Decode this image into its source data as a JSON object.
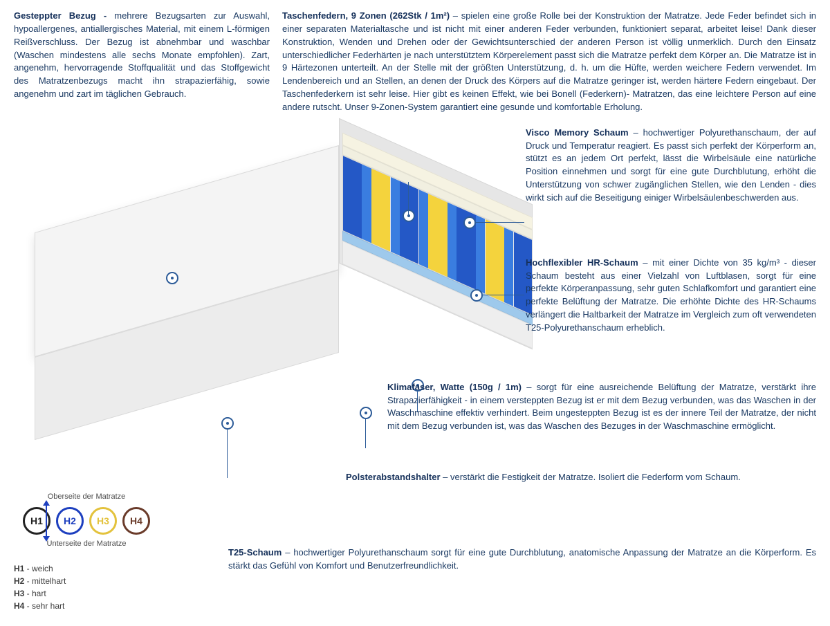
{
  "colors": {
    "text": "#1a3962",
    "title": "#15305a",
    "line": "#2c5b98",
    "h1": "#222222",
    "h2": "#1d3fbf",
    "h3": "#e3c23c",
    "h4": "#6a3b2a",
    "spring_blue": "#2458c6",
    "spring_lblue": "#3a7de0",
    "spring_yellow": "#f4d33d",
    "visco": "#f6f3e2",
    "hr": "#f1efe0",
    "klima": "#9ec9ec",
    "t25": "#eeeeee",
    "cover": "#f4f4f4"
  },
  "spring_pattern": [
    "b",
    "b",
    "lb",
    "y",
    "y",
    "lb",
    "b",
    "b",
    "lb",
    "y",
    "y",
    "lb",
    "b",
    "b",
    "lb",
    "y",
    "y",
    "lb",
    "b",
    "b"
  ],
  "top": {
    "left": {
      "title": "Gesteppter Bezug - ",
      "body": "mehrere Bezugsarten zur Auswahl, hypoallergenes, antiallergisches Material, mit einem L-förmigen Reißverschluss. Der Bezug ist abnehmbar und waschbar (Waschen mindestens alle sechs Monate empfohlen). Zart, angenehm, hervorragende Stoffqualität und das Stoffgewicht des Matratzenbezugs macht ihn strapazierfähig, sowie angenehm und zart im täglichen Gebrauch."
    },
    "right": {
      "title": "Taschenfedern, 9 Zonen (262Stk / 1m²) ",
      "body": "– spielen eine große Rolle bei der Konstruktion der Matratze. Jede Feder befindet sich in einer separaten Materialtasche und ist nicht mit einer anderen Feder verbunden, funktioniert separat, arbeitet leise! Dank dieser Konstruktion, Wenden und Drehen oder der Gewichtsunterschied der anderen Person ist völlig unmerklich. Durch den Einsatz unterschiedlicher Federhärten je nach unterstütztem Körperelement passt sich die Matratze perfekt dem Körper an. Die Matratze ist in 9 Härtezonen unterteilt. An der Stelle mit der größten Unterstützung, d. h. um die Hüfte, werden weichere Federn verwendet. Im Lendenbereich und an Stellen, an denen der Druck des Körpers auf die Matratze geringer ist, werden härtere Federn eingebaut. Der Taschenfederkern ist sehr leise. Hier gibt es keinen Effekt, wie bei Bonell (Federkern)- Matratzen, das eine leichtere Person auf eine andere rutscht. Unser 9-Zonen-System garantiert eine gesunde und komfortable Erholung."
    }
  },
  "callouts": {
    "visco": {
      "title": "Visco Memory Schaum",
      "body": " – hochwertiger Polyurethanschaum, der auf Druck und Temperatur reagiert. Es passt sich perfekt der Körperform an, stützt es an jedem Ort perfekt, lässt die Wirbelsäule eine natürliche Position einnehmen und sorgt für eine gute Durchblutung, erhöht die Unterstützung von schwer zugänglichen Stellen, wie den Lenden - dies wirkt sich auf die Beseitigung einiger Wirbelsäulenbeschwerden aus."
    },
    "hr": {
      "title": "Hochflexibler HR-Schaum",
      "body": " – mit einer Dichte von 35 kg/m³ - dieser Schaum besteht aus einer Vielzahl von Luftblasen, sorgt für eine perfekte Körperanpassung, sehr guten Schlafkomfort und garantiert eine perfekte Belüftung der Matratze. Die erhöhte Dichte des HR-Schaums verlängert die Haltbarkeit der Matratze im Vergleich zum oft verwendeten T25-Polyurethanschaum erheblich."
    },
    "klima": {
      "title": "Klimafaser, Watte (150g / 1m)",
      "body": " – sorgt für eine ausreichende Belüftung der Matratze, verstärkt ihre Strapazierfähigkeit - in einem versteppten Bezug ist er mit dem Bezug verbunden, was das Waschen in der Waschmaschine effektiv verhindert. Beim ungesteppten Bezug ist es der innere Teil der Matratze, der nicht mit dem Bezug verbunden ist, was das Waschen des Bezuges in der Waschmaschine ermöglicht."
    },
    "polster": {
      "title": "Polsterabstandshalter",
      "body": " – verstärkt die Festigkeit der Matratze. Isoliert die Federform vom Schaum."
    },
    "t25": {
      "title": "T25-Schaum",
      "body": " – hochwertiger Polyurethanschaum sorgt für eine gute Durchblutung, anatomische Anpassung der Matratze an die Körperform. Es stärkt das Gefühl von Komfort und Benutzerfreundlichkeit."
    }
  },
  "legend": {
    "top_label": "Oberseite der Matratze",
    "bottom_label": "Unterseite der Matratze",
    "items": [
      {
        "code": "H1",
        "label": "weich",
        "color": "#222222"
      },
      {
        "code": "H2",
        "label": "mittelhart",
        "color": "#1d3fbf"
      },
      {
        "code": "H3",
        "label": "hart",
        "color": "#e3c23c"
      },
      {
        "code": "H4",
        "label": "sehr hart",
        "color": "#6a3b2a"
      }
    ]
  }
}
